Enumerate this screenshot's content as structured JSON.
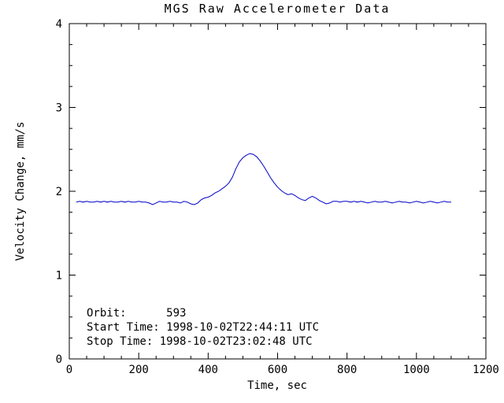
{
  "chart_data": {
    "type": "line",
    "title": "MGS Raw Accelerometer Data",
    "xlabel": "Time, sec",
    "ylabel": "Velocity Change, mm/s",
    "xlim": [
      0,
      1200
    ],
    "ylim": [
      0,
      4
    ],
    "xticks": [
      0,
      200,
      400,
      600,
      800,
      1000,
      1200
    ],
    "yticks": [
      0,
      1,
      2,
      3,
      4
    ],
    "x_minor_divisions": 4,
    "y_minor_divisions": 4,
    "grid": false,
    "legend": "none",
    "line_color": "#0000c8",
    "series": [
      {
        "name": "velocity-change",
        "x": [
          20,
          30,
          40,
          50,
          60,
          70,
          80,
          90,
          100,
          110,
          120,
          130,
          140,
          150,
          160,
          170,
          180,
          190,
          200,
          210,
          220,
          230,
          240,
          250,
          260,
          270,
          280,
          290,
          300,
          310,
          320,
          330,
          340,
          350,
          360,
          370,
          380,
          390,
          400,
          410,
          420,
          430,
          440,
          450,
          460,
          470,
          480,
          490,
          500,
          510,
          520,
          530,
          540,
          550,
          560,
          570,
          580,
          590,
          600,
          610,
          620,
          630,
          640,
          650,
          660,
          670,
          680,
          690,
          700,
          710,
          720,
          730,
          740,
          750,
          760,
          770,
          780,
          790,
          800,
          810,
          820,
          830,
          840,
          850,
          860,
          870,
          880,
          890,
          900,
          910,
          920,
          930,
          940,
          950,
          960,
          970,
          980,
          990,
          1000,
          1010,
          1020,
          1030,
          1040,
          1050,
          1060,
          1070,
          1080,
          1090,
          1100
        ],
        "y": [
          1.87,
          1.88,
          1.87,
          1.88,
          1.87,
          1.87,
          1.88,
          1.87,
          1.88,
          1.87,
          1.88,
          1.87,
          1.87,
          1.88,
          1.87,
          1.88,
          1.87,
          1.87,
          1.88,
          1.87,
          1.87,
          1.86,
          1.84,
          1.86,
          1.88,
          1.87,
          1.87,
          1.88,
          1.87,
          1.87,
          1.86,
          1.88,
          1.87,
          1.85,
          1.84,
          1.86,
          1.9,
          1.92,
          1.93,
          1.95,
          1.98,
          2.0,
          2.03,
          2.06,
          2.1,
          2.17,
          2.27,
          2.35,
          2.4,
          2.43,
          2.45,
          2.44,
          2.41,
          2.36,
          2.3,
          2.23,
          2.16,
          2.1,
          2.05,
          2.01,
          1.98,
          1.96,
          1.97,
          1.95,
          1.92,
          1.9,
          1.89,
          1.92,
          1.94,
          1.92,
          1.89,
          1.87,
          1.85,
          1.86,
          1.88,
          1.88,
          1.87,
          1.88,
          1.88,
          1.87,
          1.88,
          1.87,
          1.88,
          1.87,
          1.86,
          1.87,
          1.88,
          1.87,
          1.87,
          1.88,
          1.87,
          1.86,
          1.87,
          1.88,
          1.87,
          1.87,
          1.86,
          1.87,
          1.88,
          1.87,
          1.86,
          1.87,
          1.88,
          1.87,
          1.86,
          1.87,
          1.88,
          1.87,
          1.87
        ]
      }
    ],
    "annotations": [
      {
        "text": "Orbit:      593"
      },
      {
        "text": "Start Time: 1998-10-02T22:44:11 UTC"
      },
      {
        "text": "Stop Time: 1998-10-02T23:02:48 UTC"
      }
    ]
  }
}
